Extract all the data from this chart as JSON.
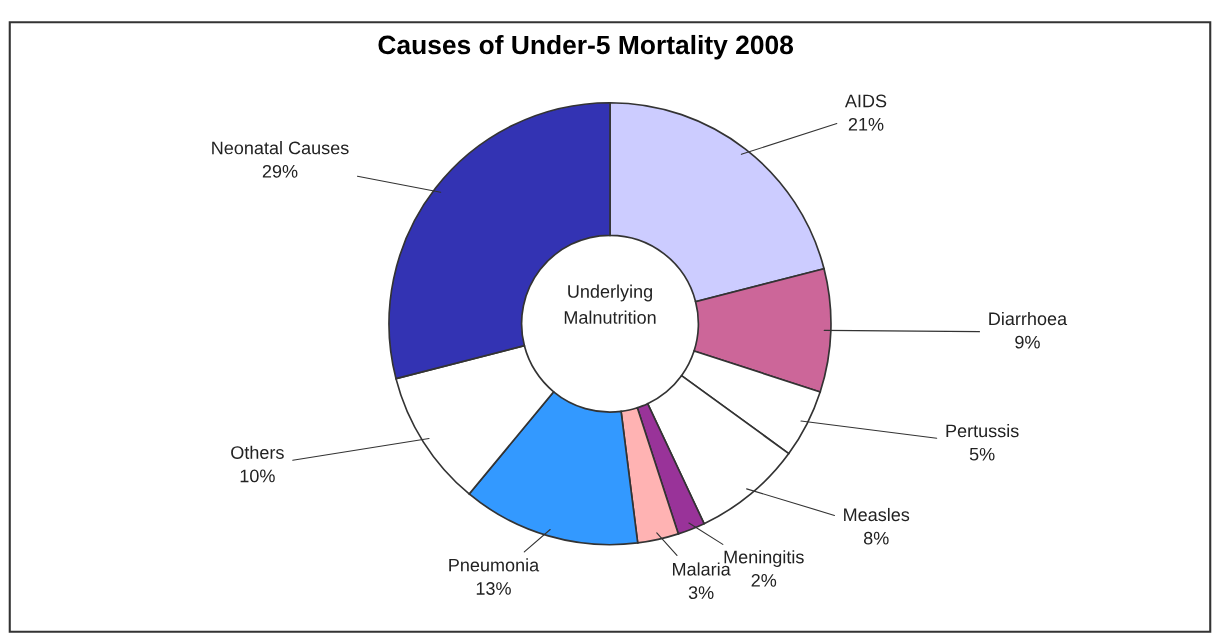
{
  "chart_data": {
    "type": "donut",
    "title": "Causes of Under-5 Mortality 2008",
    "categories": [
      "AIDS",
      "Diarrhoea",
      "Pertussis",
      "Measles",
      "Meningitis",
      "Malaria",
      "Pneumonia",
      "Others",
      "Neonatal Causes"
    ],
    "values": [
      21,
      9,
      5,
      8,
      2,
      3,
      13,
      10,
      29
    ],
    "colors": [
      "#ccccff",
      "#cc6699",
      "#ffffff",
      "#ffffff",
      "#993399",
      "#ffb3b3",
      "#3399ff",
      "#ffffff",
      "#3333b3"
    ],
    "value_labels": [
      "21%",
      "9%",
      "5%",
      "8%",
      "2%",
      "3%",
      "13%",
      "10%",
      "29%"
    ],
    "annotations": [
      "Underlying\nMalnutrition"
    ],
    "legend": false
  }
}
